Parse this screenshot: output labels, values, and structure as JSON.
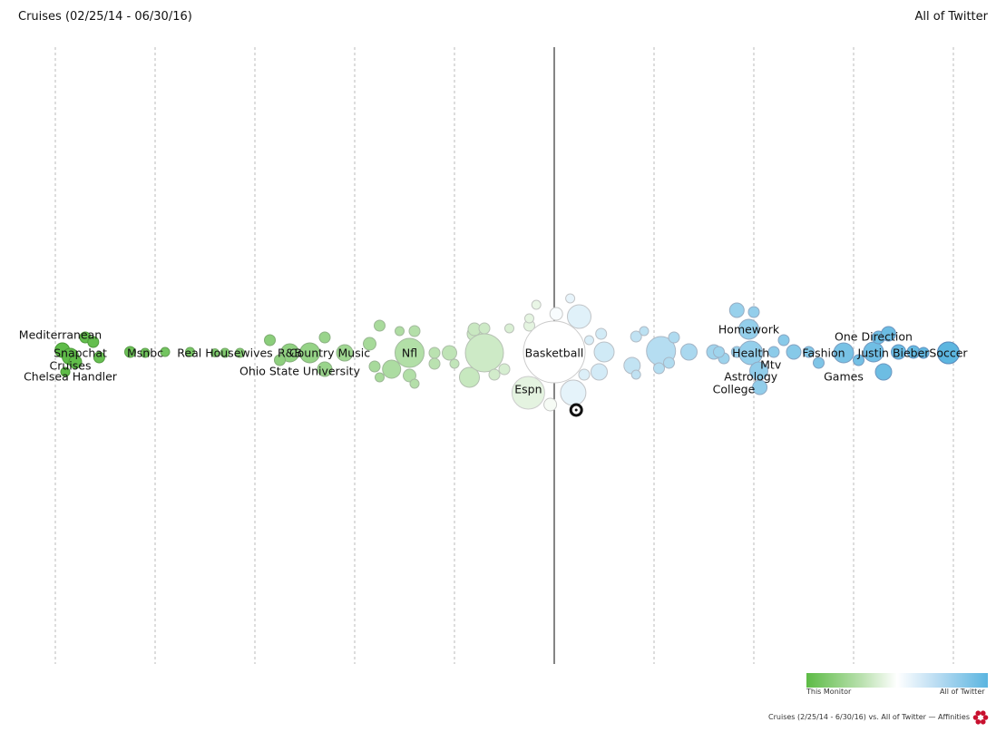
{
  "header": {
    "title": "Cruises (02/25/14 - 06/30/16)",
    "comparison": "All of Twitter"
  },
  "legend": {
    "left_label": "This Monitor",
    "right_label": "All of Twitter"
  },
  "footer": {
    "text": "Cruises (2/25/14 - 6/30/16) vs. All of Twitter — Affinities"
  },
  "colors": {
    "monitor": "#5dbb46",
    "neutral": "#ffffff",
    "twitter": "#5bb5e0",
    "brand": "#c8102e"
  },
  "icons": {
    "brand": "affinities-logo-icon",
    "marker": "target-marker-icon"
  },
  "chart_data": {
    "type": "bubble",
    "x_range": [
      -5,
      4
    ],
    "labeled_topics": [
      {
        "label": "Mediterranean",
        "x": -4.95,
        "row": -1
      },
      {
        "label": "Snapchat",
        "x": -4.75,
        "row": 0
      },
      {
        "label": "Cruises",
        "x": -4.85,
        "row": 0.7
      },
      {
        "label": "Chelsea Handler",
        "x": -4.85,
        "row": 1.3
      },
      {
        "label": "Msnbc",
        "x": -4.1,
        "row": 0
      },
      {
        "label": "Real Housewives",
        "x": -3.3,
        "row": 0
      },
      {
        "label": "R&B",
        "x": -2.65,
        "row": 0
      },
      {
        "label": "Country Music",
        "x": -2.25,
        "row": 0
      },
      {
        "label": "Ohio State University",
        "x": -2.55,
        "row": 1
      },
      {
        "label": "Nfl",
        "x": -1.45,
        "row": 0
      },
      {
        "label": "Basketball",
        "x": 0,
        "row": 0
      },
      {
        "label": "Espn",
        "x": -0.26,
        "row": 2
      },
      {
        "label": "Homework",
        "x": 1.95,
        "row": -1.3
      },
      {
        "label": "Health",
        "x": 1.97,
        "row": 0
      },
      {
        "label": "Mtv",
        "x": 2.17,
        "row": 0.65
      },
      {
        "label": "Astrology",
        "x": 1.97,
        "row": 1.3
      },
      {
        "label": "College",
        "x": 1.8,
        "row": 2
      },
      {
        "label": "Fashion",
        "x": 2.7,
        "row": 0
      },
      {
        "label": "Games",
        "x": 2.9,
        "row": 1.3
      },
      {
        "label": "One Direction",
        "x": 3.2,
        "row": -0.9
      },
      {
        "label": "Justin Bieber",
        "x": 3.4,
        "row": 0
      },
      {
        "label": "Soccer",
        "x": 3.95,
        "row": 0
      }
    ],
    "marker": {
      "x": 0.22,
      "row": 3
    }
  }
}
